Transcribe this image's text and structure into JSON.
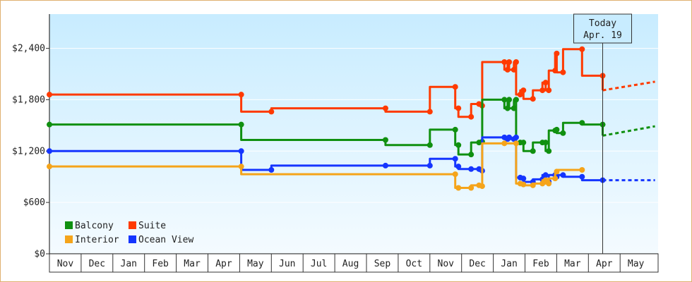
{
  "chart_data": {
    "type": "line",
    "title": "",
    "xlabel": "",
    "ylabel": "",
    "y_ticks": [
      "$0",
      "$600",
      "$1,200",
      "$1,800",
      "$2,400"
    ],
    "y_tick_values": [
      0,
      600,
      1200,
      1800,
      2400
    ],
    "ylim": [
      0,
      2800
    ],
    "x_start": "Nov",
    "month_labels": [
      "Nov",
      "Dec",
      "Jan",
      "Feb",
      "Mar",
      "Apr",
      "May",
      "Jun",
      "Jul",
      "Aug",
      "Sep",
      "Oct",
      "Nov",
      "Dec",
      "Jan",
      "Feb",
      "Mar",
      "Apr",
      "May"
    ],
    "grid": "horizontal",
    "background": "gradient light blue",
    "legend_position": "bottom-left",
    "today": {
      "line1": "Today",
      "line2": "Apr. 19",
      "x": 17.45
    },
    "series": [
      {
        "name": "Suite",
        "color": "#ff3a00",
        "points": [
          [
            0.0,
            1860
          ],
          [
            6.05,
            1860
          ],
          [
            6.05,
            1660
          ],
          [
            7.0,
            1660
          ],
          [
            7.0,
            1700
          ],
          [
            10.6,
            1700
          ],
          [
            10.6,
            1660
          ],
          [
            12.0,
            1660
          ],
          [
            12.0,
            1950
          ],
          [
            12.8,
            1950
          ],
          [
            12.8,
            1700
          ],
          [
            12.9,
            1700
          ],
          [
            12.9,
            1600
          ],
          [
            13.3,
            1600
          ],
          [
            13.3,
            1750
          ],
          [
            13.55,
            1750
          ],
          [
            13.55,
            1730
          ],
          [
            13.65,
            1730
          ],
          [
            13.65,
            2240
          ],
          [
            14.35,
            2240
          ],
          [
            14.35,
            2150
          ],
          [
            14.45,
            2150
          ],
          [
            14.45,
            2240
          ],
          [
            14.5,
            2240
          ],
          [
            14.5,
            2150
          ],
          [
            14.65,
            2150
          ],
          [
            14.65,
            2240
          ],
          [
            14.72,
            2240
          ],
          [
            14.72,
            1860
          ],
          [
            14.85,
            1860
          ],
          [
            14.85,
            1910
          ],
          [
            14.95,
            1910
          ],
          [
            14.95,
            1810
          ],
          [
            15.25,
            1810
          ],
          [
            15.25,
            1910
          ],
          [
            15.55,
            1910
          ],
          [
            15.55,
            2000
          ],
          [
            15.65,
            2000
          ],
          [
            15.65,
            1910
          ],
          [
            15.75,
            1910
          ],
          [
            15.75,
            2140
          ],
          [
            15.95,
            2140
          ],
          [
            15.95,
            2340
          ],
          [
            16.0,
            2340
          ],
          [
            16.0,
            2120
          ],
          [
            16.2,
            2120
          ],
          [
            16.2,
            2390
          ],
          [
            16.8,
            2390
          ],
          [
            16.8,
            2080
          ],
          [
            17.45,
            2080
          ],
          [
            17.45,
            1910
          ]
        ],
        "forecast": [
          [
            17.45,
            1910
          ],
          [
            19.1,
            2010
          ]
        ]
      },
      {
        "name": "Balcony",
        "color": "#109010",
        "points": [
          [
            0.0,
            1510
          ],
          [
            6.05,
            1510
          ],
          [
            6.05,
            1330
          ],
          [
            10.6,
            1330
          ],
          [
            10.6,
            1270
          ],
          [
            12.0,
            1270
          ],
          [
            12.0,
            1450
          ],
          [
            12.8,
            1450
          ],
          [
            12.8,
            1270
          ],
          [
            12.9,
            1270
          ],
          [
            12.9,
            1160
          ],
          [
            13.3,
            1160
          ],
          [
            13.3,
            1300
          ],
          [
            13.55,
            1300
          ],
          [
            13.55,
            1310
          ],
          [
            13.65,
            1310
          ],
          [
            13.65,
            1800
          ],
          [
            14.35,
            1800
          ],
          [
            14.35,
            1700
          ],
          [
            14.45,
            1700
          ],
          [
            14.45,
            1800
          ],
          [
            14.5,
            1800
          ],
          [
            14.5,
            1700
          ],
          [
            14.65,
            1700
          ],
          [
            14.65,
            1800
          ],
          [
            14.72,
            1800
          ],
          [
            14.72,
            1300
          ],
          [
            14.85,
            1300
          ],
          [
            14.85,
            1300
          ],
          [
            14.95,
            1300
          ],
          [
            14.95,
            1200
          ],
          [
            15.25,
            1200
          ],
          [
            15.25,
            1300
          ],
          [
            15.55,
            1300
          ],
          [
            15.55,
            1300
          ],
          [
            15.65,
            1300
          ],
          [
            15.65,
            1200
          ],
          [
            15.75,
            1200
          ],
          [
            15.75,
            1440
          ],
          [
            15.95,
            1440
          ],
          [
            15.95,
            1450
          ],
          [
            16.0,
            1450
          ],
          [
            16.0,
            1410
          ],
          [
            16.2,
            1410
          ],
          [
            16.2,
            1530
          ],
          [
            16.8,
            1530
          ],
          [
            16.8,
            1510
          ],
          [
            17.45,
            1510
          ],
          [
            17.45,
            1380
          ]
        ],
        "forecast": [
          [
            17.45,
            1380
          ],
          [
            19.1,
            1490
          ]
        ]
      },
      {
        "name": "Ocean View",
        "color": "#1535ff",
        "points": [
          [
            0.0,
            1200
          ],
          [
            6.05,
            1200
          ],
          [
            6.05,
            980
          ],
          [
            7.0,
            980
          ],
          [
            7.0,
            1030
          ],
          [
            10.6,
            1030
          ],
          [
            10.6,
            1030
          ],
          [
            12.0,
            1030
          ],
          [
            12.0,
            1110
          ],
          [
            12.8,
            1110
          ],
          [
            12.8,
            1020
          ],
          [
            12.9,
            1020
          ],
          [
            12.9,
            990
          ],
          [
            13.3,
            990
          ],
          [
            13.3,
            990
          ],
          [
            13.55,
            990
          ],
          [
            13.55,
            970
          ],
          [
            13.65,
            970
          ],
          [
            13.65,
            1360
          ],
          [
            14.35,
            1360
          ],
          [
            14.35,
            1340
          ],
          [
            14.45,
            1340
          ],
          [
            14.45,
            1360
          ],
          [
            14.5,
            1360
          ],
          [
            14.5,
            1340
          ],
          [
            14.65,
            1340
          ],
          [
            14.65,
            1360
          ],
          [
            14.72,
            1360
          ],
          [
            14.72,
            890
          ],
          [
            14.85,
            890
          ],
          [
            14.85,
            880
          ],
          [
            14.95,
            880
          ],
          [
            14.95,
            840
          ],
          [
            15.25,
            840
          ],
          [
            15.25,
            870
          ],
          [
            15.55,
            870
          ],
          [
            15.55,
            920
          ],
          [
            15.65,
            920
          ],
          [
            15.65,
            840
          ],
          [
            15.75,
            840
          ],
          [
            15.75,
            920
          ],
          [
            15.95,
            920
          ],
          [
            15.95,
            900
          ],
          [
            16.0,
            900
          ],
          [
            16.0,
            920
          ],
          [
            16.2,
            920
          ],
          [
            16.2,
            900
          ],
          [
            16.8,
            900
          ],
          [
            16.8,
            860
          ],
          [
            17.45,
            860
          ],
          [
            17.45,
            860
          ]
        ],
        "forecast": [
          [
            17.45,
            860
          ],
          [
            19.1,
            860
          ]
        ]
      },
      {
        "name": "Interior",
        "color": "#f5a41a",
        "points": [
          [
            0.0,
            1020
          ],
          [
            6.05,
            1020
          ],
          [
            6.05,
            930
          ],
          [
            12.8,
            930
          ],
          [
            12.8,
            770
          ],
          [
            12.9,
            770
          ],
          [
            12.9,
            770
          ],
          [
            13.3,
            770
          ],
          [
            13.3,
            800
          ],
          [
            13.55,
            800
          ],
          [
            13.55,
            790
          ],
          [
            13.65,
            790
          ],
          [
            13.65,
            1290
          ],
          [
            14.35,
            1290
          ],
          [
            14.35,
            1290
          ],
          [
            14.72,
            1290
          ],
          [
            14.72,
            820
          ],
          [
            14.85,
            820
          ],
          [
            14.85,
            810
          ],
          [
            14.95,
            810
          ],
          [
            14.95,
            800
          ],
          [
            15.25,
            800
          ],
          [
            15.25,
            820
          ],
          [
            15.55,
            820
          ],
          [
            15.55,
            860
          ],
          [
            15.65,
            860
          ],
          [
            15.65,
            820
          ],
          [
            15.75,
            820
          ],
          [
            15.75,
            880
          ],
          [
            15.95,
            880
          ],
          [
            15.95,
            960
          ],
          [
            16.0,
            960
          ],
          [
            16.0,
            980
          ],
          [
            16.8,
            980
          ]
        ],
        "forecast": []
      }
    ]
  }
}
